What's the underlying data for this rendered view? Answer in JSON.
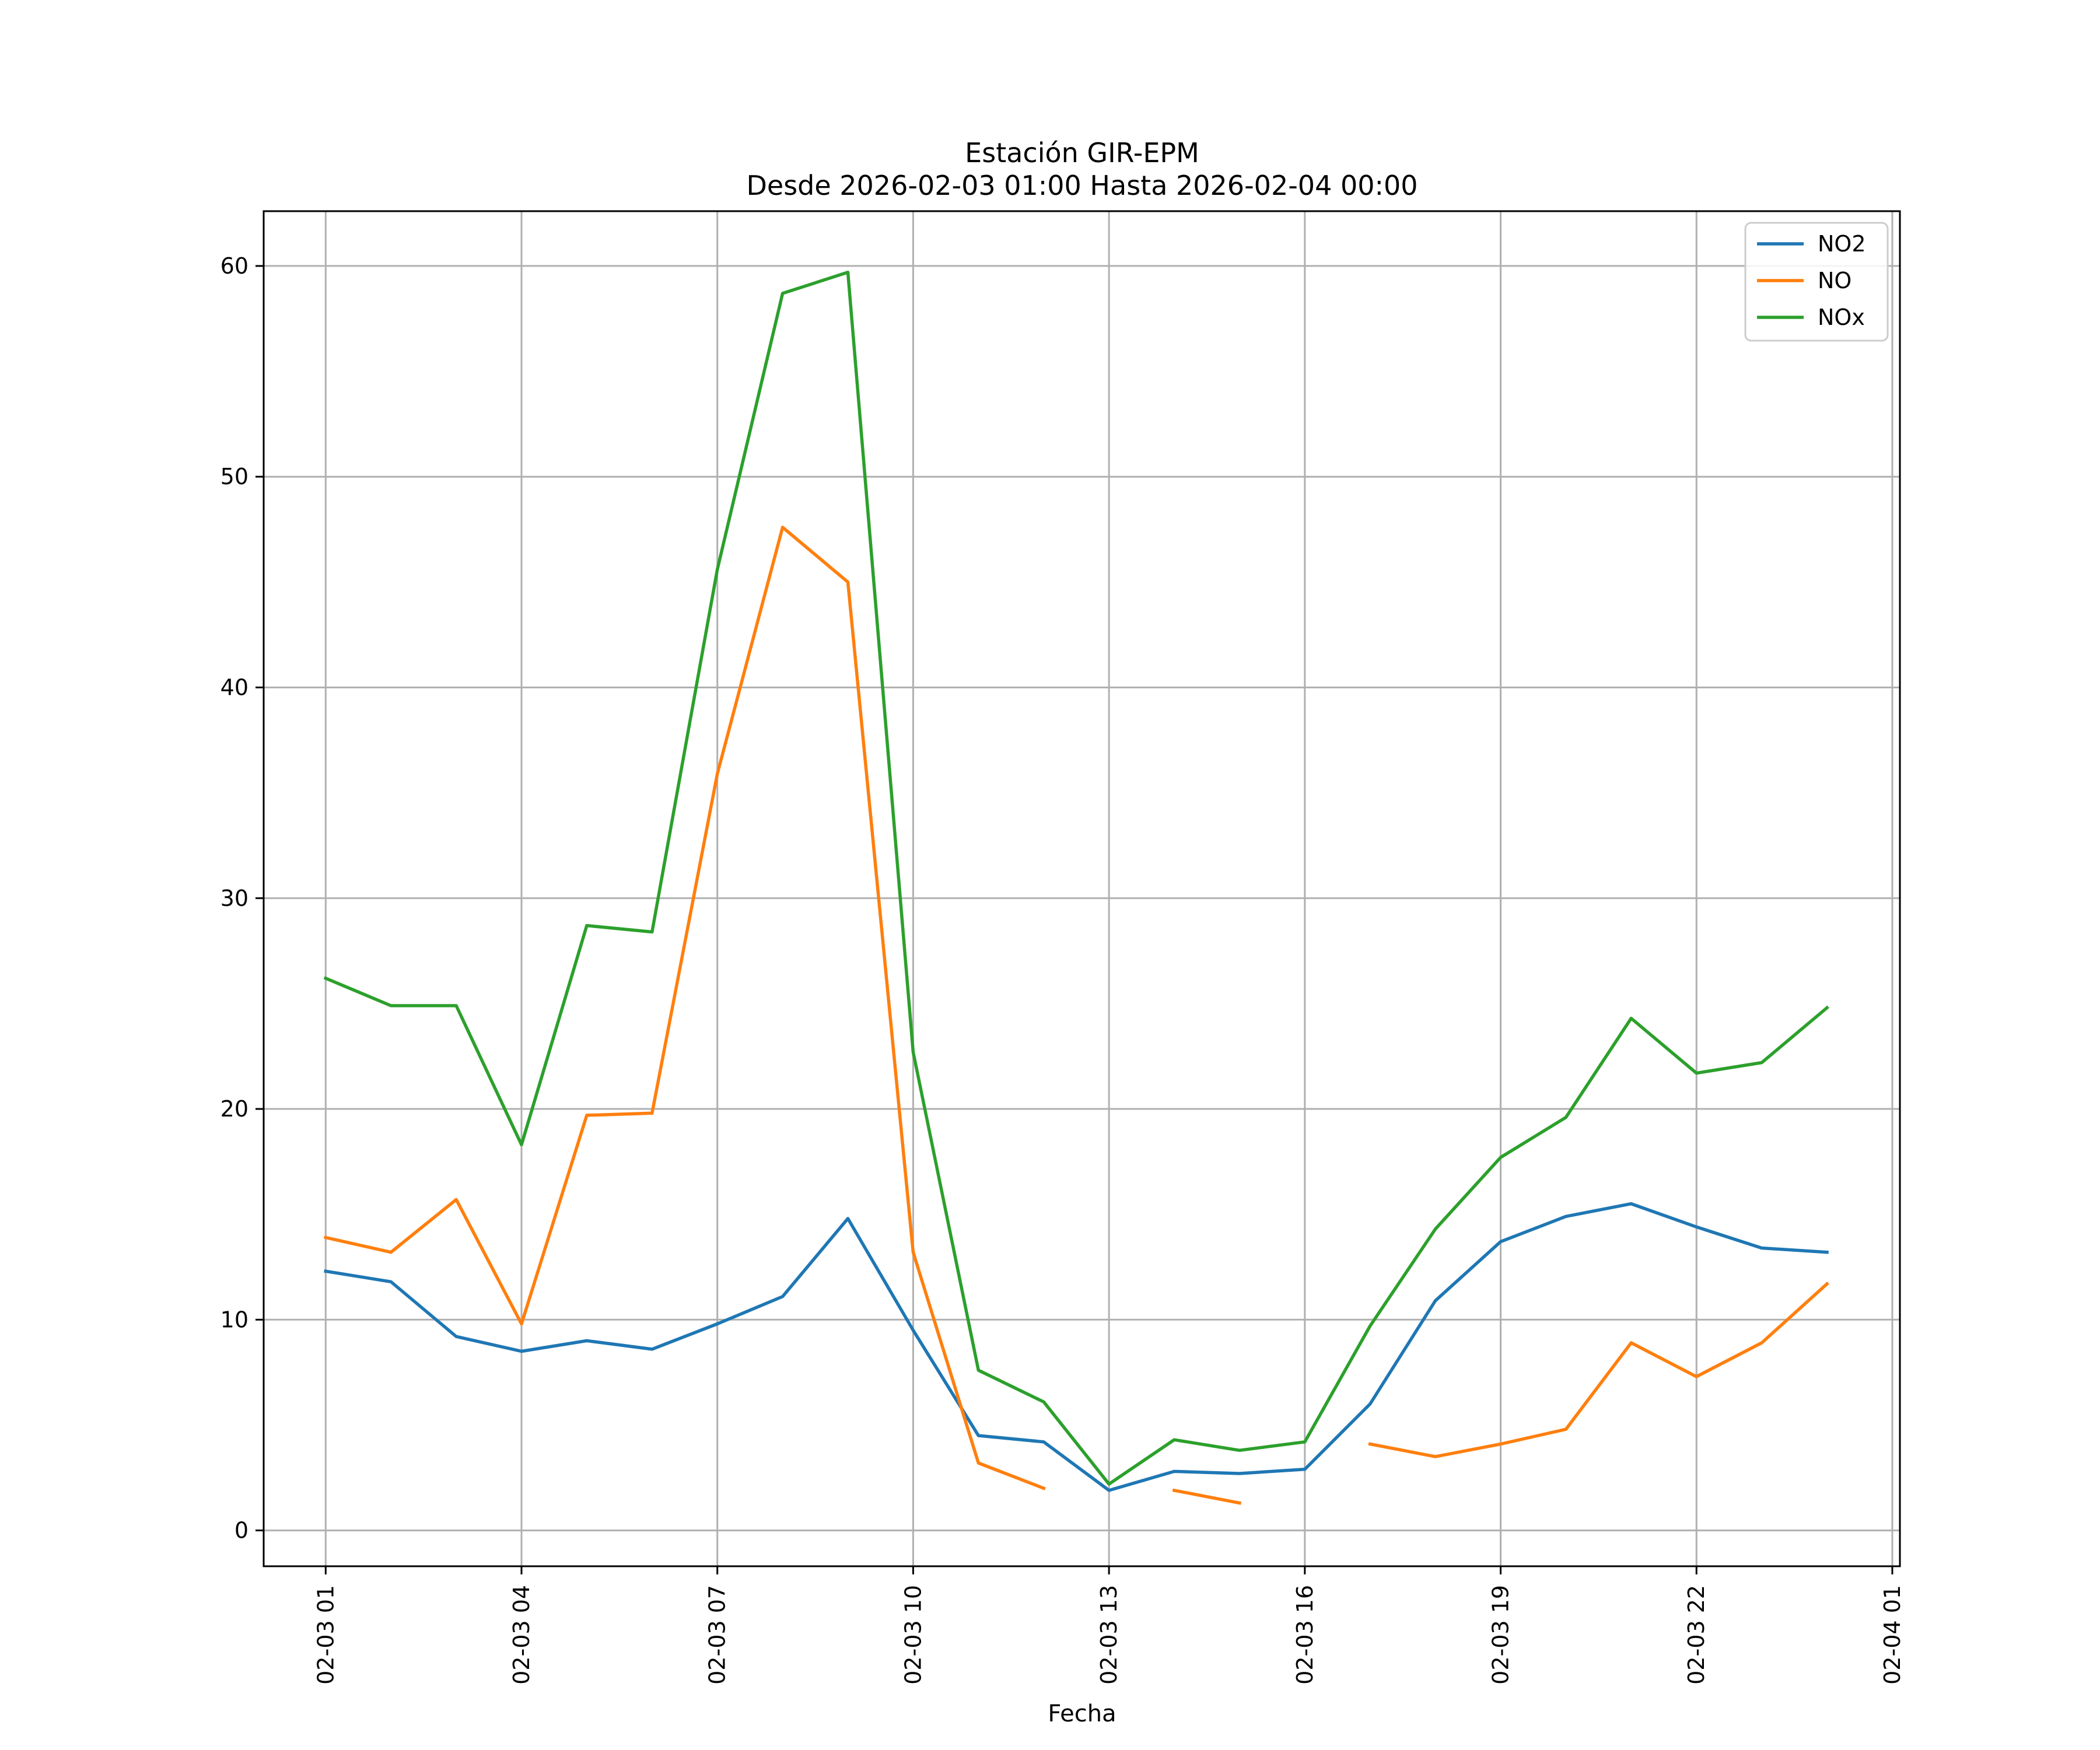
{
  "chart_data": {
    "type": "line",
    "title_line1": "Estación GIR-EPM",
    "title_line2": "Desde 2026-02-03 01:00 Hasta 2026-02-04 00:00",
    "xlabel": "Fecha",
    "ylabel": "",
    "x": [
      "2026-02-03 01:00",
      "2026-02-03 02:00",
      "2026-02-03 03:00",
      "2026-02-03 04:00",
      "2026-02-03 05:00",
      "2026-02-03 06:00",
      "2026-02-03 07:00",
      "2026-02-03 08:00",
      "2026-02-03 09:00",
      "2026-02-03 10:00",
      "2026-02-03 11:00",
      "2026-02-03 12:00",
      "2026-02-03 13:00",
      "2026-02-03 14:00",
      "2026-02-03 15:00",
      "2026-02-03 16:00",
      "2026-02-03 17:00",
      "2026-02-03 18:00",
      "2026-02-03 19:00",
      "2026-02-03 20:00",
      "2026-02-03 21:00",
      "2026-02-03 22:00",
      "2026-02-03 23:00",
      "2026-02-04 00:00"
    ],
    "xlim": [
      "2026-02-03 00:03",
      "2026-02-04 01:07"
    ],
    "x_ticks": [
      {
        "t": "2026-02-03 01:00",
        "label": "02-03 01"
      },
      {
        "t": "2026-02-03 04:00",
        "label": "02-03 04"
      },
      {
        "t": "2026-02-03 07:00",
        "label": "02-03 07"
      },
      {
        "t": "2026-02-03 10:00",
        "label": "02-03 10"
      },
      {
        "t": "2026-02-03 13:00",
        "label": "02-03 13"
      },
      {
        "t": "2026-02-03 16:00",
        "label": "02-03 16"
      },
      {
        "t": "2026-02-03 19:00",
        "label": "02-03 19"
      },
      {
        "t": "2026-02-03 22:00",
        "label": "02-03 22"
      },
      {
        "t": "2026-02-04 01:00",
        "label": "02-04 01"
      }
    ],
    "y_ticks": [
      0,
      10,
      20,
      30,
      40,
      50,
      60
    ],
    "ylim": [
      -1.7,
      62.6
    ],
    "grid": true,
    "legend_position": "top-right",
    "series": [
      {
        "name": "NO2",
        "color": "#1f77b4",
        "values": [
          12.3,
          11.8,
          9.2,
          8.5,
          9.0,
          8.6,
          9.8,
          11.1,
          14.8,
          9.5,
          4.5,
          4.2,
          1.9,
          2.8,
          2.7,
          2.9,
          6.0,
          10.9,
          13.7,
          14.9,
          15.5,
          14.4,
          13.4,
          13.2
        ]
      },
      {
        "name": "NO",
        "color": "#ff7f0e",
        "values": [
          13.9,
          13.2,
          15.7,
          9.8,
          19.7,
          19.8,
          35.9,
          47.6,
          45.0,
          13.2,
          3.2,
          2.0,
          null,
          1.9,
          1.3,
          null,
          4.1,
          3.5,
          4.1,
          4.8,
          8.9,
          7.3,
          8.9,
          11.7
        ]
      },
      {
        "name": "NOx",
        "color": "#2ca02c",
        "values": [
          26.2,
          24.9,
          24.9,
          18.3,
          28.7,
          28.4,
          45.6,
          58.7,
          59.7,
          22.7,
          7.6,
          6.1,
          2.2,
          4.3,
          3.8,
          4.2,
          9.7,
          14.3,
          17.7,
          19.6,
          24.3,
          21.7,
          22.2,
          24.8
        ]
      }
    ]
  }
}
